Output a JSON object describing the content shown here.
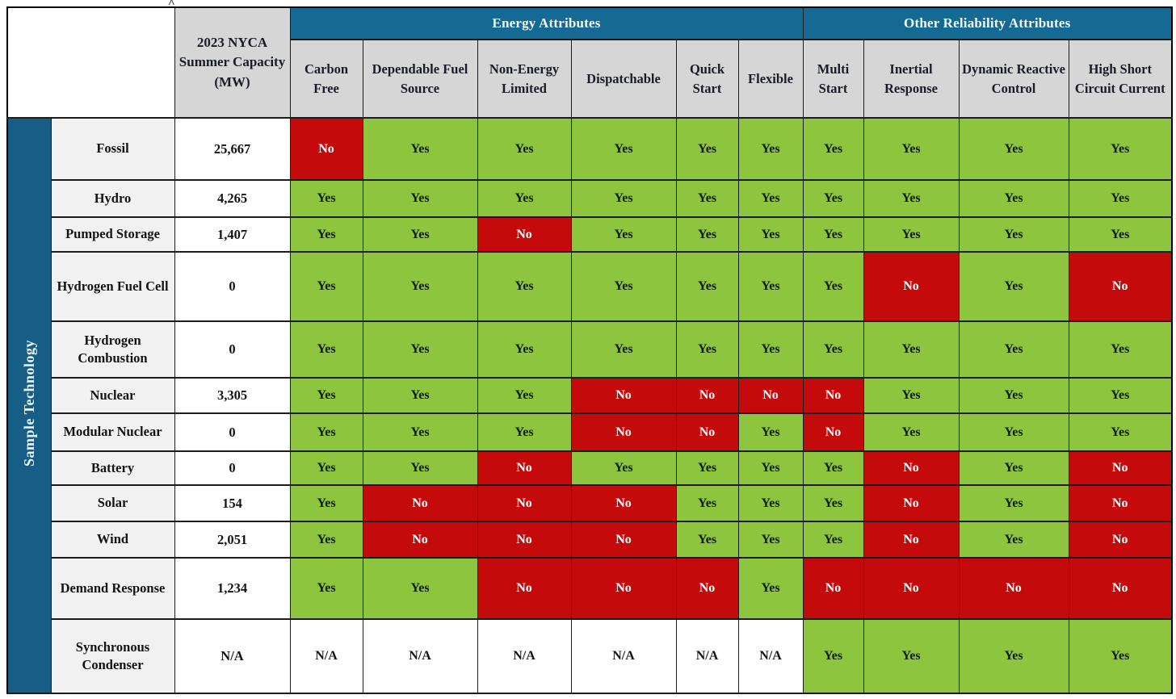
{
  "colors": {
    "group_header_blue": "#156a93",
    "sidebar_blue": "#175e86",
    "yes_green": "#8dc63e",
    "no_red": "#c50a0c",
    "column_header_gray": "#d6d6d6",
    "technology_label_gray": "#f1f1f1"
  },
  "table": {
    "sidebar_label": "Sample Technology",
    "capacity_header": "2023 NYCA Summer Capacity (MW)",
    "group_headers": [
      {
        "label": "Energy Attributes",
        "span": 6
      },
      {
        "label": "Other Reliability Attributes",
        "span": 4
      }
    ],
    "columns": [
      "Carbon Free",
      "Dependable Fuel Source",
      "Non-Energy Limited",
      "Dispatchable",
      "Quick Start",
      "Flexible",
      "Multi Start",
      "Inertial Response",
      "Dynamic Reactive Control",
      "High Short Circuit Current"
    ],
    "rows": [
      {
        "technology": "Fossil",
        "capacity": "25,667",
        "values": [
          "No",
          "Yes",
          "Yes",
          "Yes",
          "Yes",
          "Yes",
          "Yes",
          "Yes",
          "Yes",
          "Yes"
        ]
      },
      {
        "technology": "Hydro",
        "capacity": "4,265",
        "values": [
          "Yes",
          "Yes",
          "Yes",
          "Yes",
          "Yes",
          "Yes",
          "Yes",
          "Yes",
          "Yes",
          "Yes"
        ]
      },
      {
        "technology": "Pumped Storage",
        "capacity": "1,407",
        "values": [
          "Yes",
          "Yes",
          "No",
          "Yes",
          "Yes",
          "Yes",
          "Yes",
          "Yes",
          "Yes",
          "Yes"
        ]
      },
      {
        "technology": "Hydrogen Fuel Cell",
        "capacity": "0",
        "values": [
          "Yes",
          "Yes",
          "Yes",
          "Yes",
          "Yes",
          "Yes",
          "Yes",
          "No",
          "Yes",
          "No"
        ]
      },
      {
        "technology": "Hydrogen Combustion",
        "capacity": "0",
        "values": [
          "Yes",
          "Yes",
          "Yes",
          "Yes",
          "Yes",
          "Yes",
          "Yes",
          "Yes",
          "Yes",
          "Yes"
        ]
      },
      {
        "technology": "Nuclear",
        "capacity": "3,305",
        "values": [
          "Yes",
          "Yes",
          "Yes",
          "No",
          "No",
          "No",
          "No",
          "Yes",
          "Yes",
          "Yes"
        ]
      },
      {
        "technology": "Modular Nuclear",
        "capacity": "0",
        "values": [
          "Yes",
          "Yes",
          "Yes",
          "No",
          "No",
          "Yes",
          "No",
          "Yes",
          "Yes",
          "Yes"
        ]
      },
      {
        "technology": "Battery",
        "capacity": "0",
        "values": [
          "Yes",
          "Yes",
          "No",
          "Yes",
          "Yes",
          "Yes",
          "Yes",
          "No",
          "Yes",
          "No"
        ]
      },
      {
        "technology": "Solar",
        "capacity": "154",
        "values": [
          "Yes",
          "No",
          "No",
          "No",
          "Yes",
          "Yes",
          "Yes",
          "No",
          "Yes",
          "No"
        ]
      },
      {
        "technology": "Wind",
        "capacity": "2,051",
        "values": [
          "Yes",
          "No",
          "No",
          "No",
          "Yes",
          "Yes",
          "Yes",
          "No",
          "Yes",
          "No"
        ]
      },
      {
        "technology": "Demand Response",
        "capacity": "1,234",
        "values": [
          "Yes",
          "Yes",
          "No",
          "No",
          "No",
          "Yes",
          "No",
          "No",
          "No",
          "No"
        ]
      },
      {
        "technology": "Synchronous Condenser",
        "capacity": "N/A",
        "values": [
          "N/A",
          "N/A",
          "N/A",
          "N/A",
          "N/A",
          "N/A",
          "Yes",
          "Yes",
          "Yes",
          "Yes"
        ]
      }
    ]
  },
  "artifacts": {
    "caret_glyph": "^"
  }
}
